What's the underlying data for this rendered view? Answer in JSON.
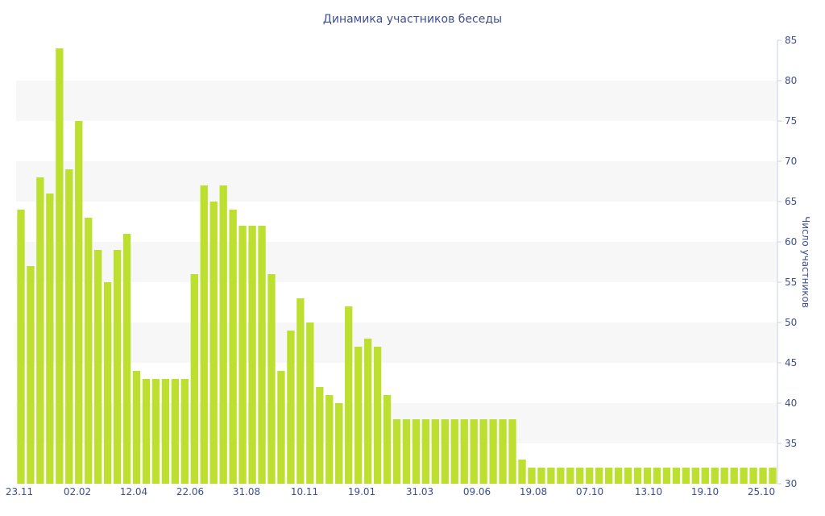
{
  "chart_data": {
    "type": "bar",
    "title": "Динамика участников беседы",
    "ylabel": "Число участников",
    "xlabel": "",
    "ylim": [
      30,
      85
    ],
    "y_ticks": [
      30,
      35,
      40,
      45,
      50,
      55,
      60,
      65,
      70,
      75,
      80,
      85
    ],
    "y_axis_side": "right",
    "grid": "alternating horizontal bands",
    "bar_color": "#bddf30",
    "x_tick_labels": [
      "23.11",
      "02.02",
      "12.04",
      "22.06",
      "31.08",
      "10.11",
      "19.01",
      "31.03",
      "09.06",
      "19.08",
      "07.10",
      "13.10",
      "19.10",
      "25.10"
    ],
    "values": [
      64,
      57,
      68,
      66,
      84,
      69,
      75,
      63,
      59,
      55,
      59,
      61,
      44,
      43,
      43,
      43,
      43,
      43,
      56,
      67,
      65,
      67,
      64,
      62,
      62,
      62,
      56,
      44,
      49,
      53,
      50,
      42,
      41,
      40,
      52,
      47,
      48,
      47,
      41,
      38,
      38,
      38,
      38,
      38,
      38,
      38,
      38,
      38,
      38,
      38,
      38,
      38,
      33,
      32,
      32,
      32,
      32,
      32,
      32,
      32,
      32,
      32,
      32,
      32,
      32,
      32,
      32,
      32,
      32,
      32,
      32,
      32,
      32,
      32,
      32,
      32,
      32,
      32,
      32
    ]
  }
}
